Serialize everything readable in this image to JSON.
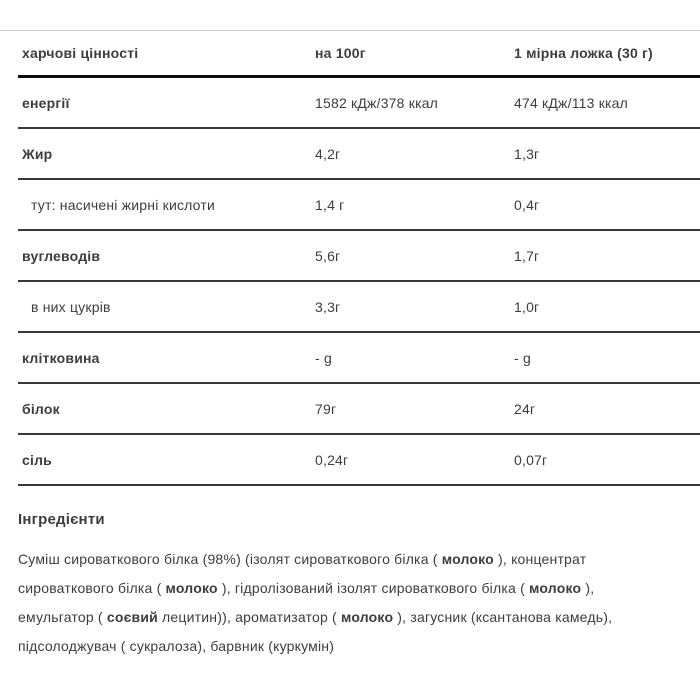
{
  "table": {
    "columns": {
      "c1": "харчові цінності",
      "c2": "на 100г",
      "c3": "1 мірна ложка (30 г)"
    },
    "rows": [
      {
        "label": "енергії",
        "per100": "1582 кДж/378 ккал",
        "per_spoon": "474 кДж/113 ккал"
      },
      {
        "label": "Жир",
        "per100": "4,2г",
        "per_spoon": "1,3г"
      },
      {
        "label": "тут: насичені жирні кислоти",
        "per100": "1,4 г",
        "per_spoon": "0,4г"
      },
      {
        "label": "вуглеводів",
        "per100": "5,6г",
        "per_spoon": "1,7г"
      },
      {
        "label": "в них цукрів",
        "per100": "3,3г",
        "per_spoon": "1,0г"
      },
      {
        "label": "клітковина",
        "per100": "- g",
        "per_spoon": "- g"
      },
      {
        "label": "білок",
        "per100": "79г",
        "per_spoon": "24г"
      },
      {
        "label": "сіль",
        "per100": "0,24г",
        "per_spoon": "0,07г"
      }
    ]
  },
  "ingredients": {
    "title": "Інгредієнти",
    "segments": [
      {
        "text": "Суміш сироваткового білка (98%) (ізолят сироваткового білка ( ",
        "bold": false
      },
      {
        "text": "молоко",
        "bold": true
      },
      {
        "text": " ), концентрат сироваткового білка ( ",
        "bold": false
      },
      {
        "text": "молоко",
        "bold": true
      },
      {
        "text": " ), гідролізований ізолят сироваткового білка ( ",
        "bold": false
      },
      {
        "text": "молоко",
        "bold": true
      },
      {
        "text": " ), емульгатор ( ",
        "bold": false
      },
      {
        "text": "соєвий",
        "bold": true
      },
      {
        "text": " лецитин)), ароматизатор ( ",
        "bold": false
      },
      {
        "text": "молоко",
        "bold": true
      },
      {
        "text": " ), загусник (ксантанова камедь), підсолоджувач ( сукралоза), барвник (куркумін)",
        "bold": false
      }
    ]
  },
  "colors": {
    "text": "#3d3d3d",
    "top_line": "#cbcbcb",
    "header_line": "#0c0c0c",
    "row_line": "#383838"
  }
}
